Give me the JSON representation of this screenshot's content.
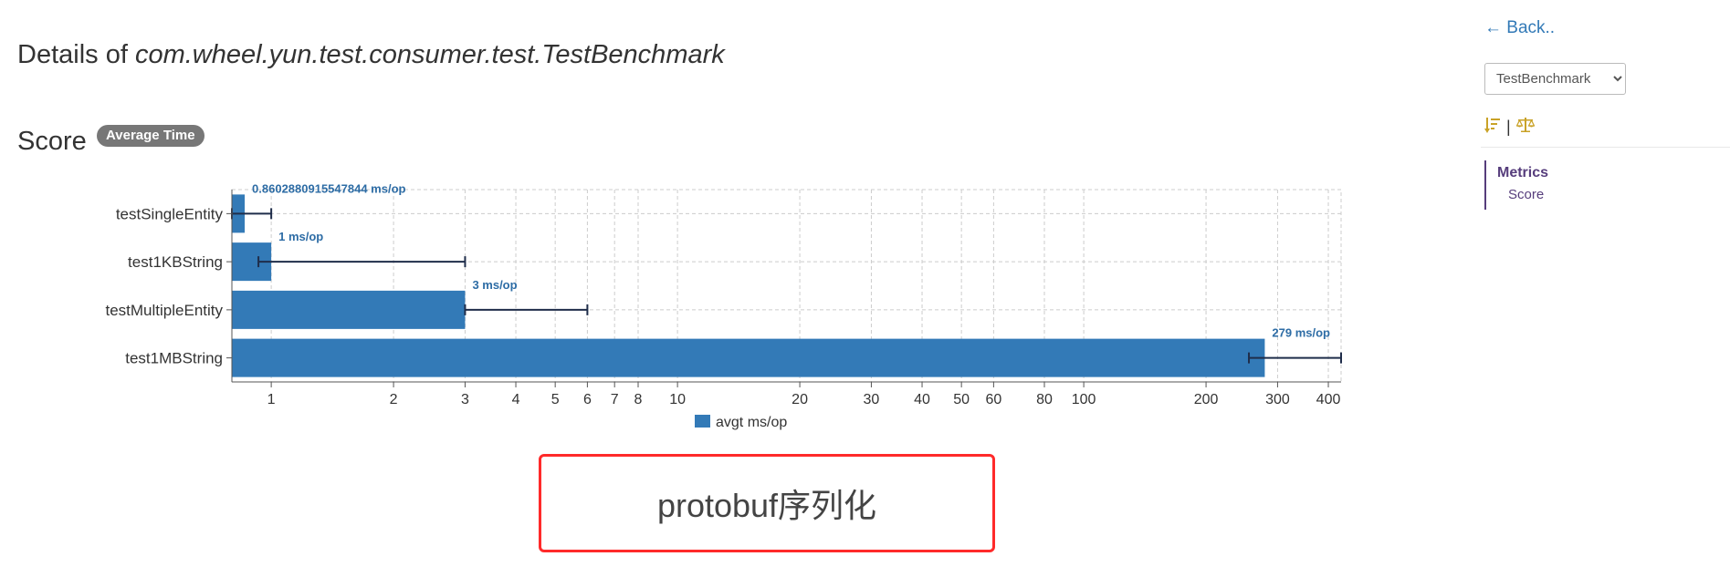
{
  "header": {
    "title_prefix": "Details of ",
    "title_class": "com.wheel.yun.test.consumer.test.TestBenchmark"
  },
  "score": {
    "heading": "Score",
    "badge": "Average Time"
  },
  "chart_data": {
    "type": "bar",
    "orientation": "horizontal",
    "x_scale": "log",
    "categories": [
      "testSingleEntity",
      "test1KBString",
      "testMultipleEntity",
      "test1MBString"
    ],
    "series": [
      {
        "name": "avgt ms/op",
        "color": "#337ab7",
        "values": [
          0.8602880915547844,
          1,
          3,
          279
        ],
        "error_low": [
          0.8,
          0.93,
          3,
          255
        ],
        "error_high": [
          1,
          3,
          6,
          430
        ]
      }
    ],
    "data_labels": [
      "0.8602880915547844 ms/op",
      "1 ms/op",
      "3 ms/op",
      "279 ms/op"
    ],
    "x_ticks": [
      1,
      2,
      3,
      4,
      5,
      6,
      7,
      8,
      10,
      20,
      30,
      40,
      50,
      60,
      80,
      100,
      200,
      300,
      400
    ],
    "xlim": [
      0.8,
      430
    ],
    "grid": true,
    "legend": "bottom-center"
  },
  "caption": "protobuf序列化",
  "sidebar": {
    "back_label": "← Back..",
    "select_value": "TestBenchmark",
    "sort_icon": "sort-amount-icon",
    "separator": "|",
    "compare_icon": "balance-scale-icon",
    "toc": {
      "section": "Metrics",
      "item": "Score"
    }
  }
}
